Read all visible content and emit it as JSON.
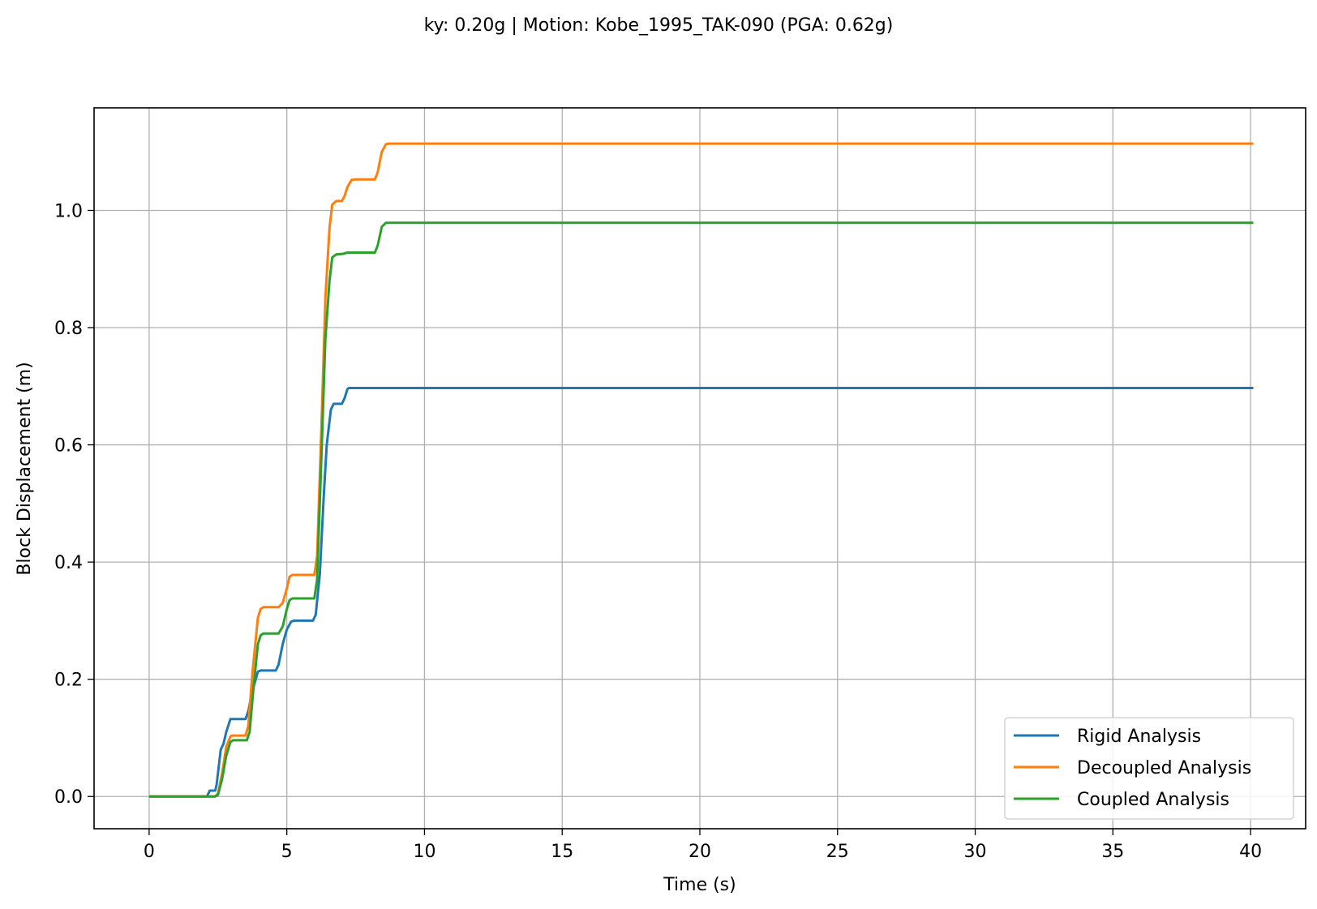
{
  "chart_data": {
    "type": "line",
    "title": "ky: 0.20g | Motion: Kobe_1995_TAK-090 (PGA: 0.62g)",
    "xlabel": "Time (s)",
    "ylabel": "Block Displacement (m)",
    "xlim": [
      -2.0,
      42.0
    ],
    "ylim": [
      -0.055,
      1.175
    ],
    "xticks": [
      0,
      5,
      10,
      15,
      20,
      25,
      30,
      35,
      40
    ],
    "xtick_labels": [
      "0",
      "5",
      "10",
      "15",
      "20",
      "25",
      "30",
      "35",
      "40"
    ],
    "yticks": [
      0.0,
      0.2,
      0.4,
      0.6,
      0.8,
      1.0
    ],
    "ytick_labels": [
      "0.0",
      "0.2",
      "0.4",
      "0.6",
      "0.8",
      "1.0"
    ],
    "grid": true,
    "legend_position": "lower-right",
    "series": [
      {
        "name": "Rigid Analysis",
        "color": "#1f77b4",
        "x": [
          0.0,
          2.1,
          2.2,
          2.3,
          2.4,
          2.45,
          2.6,
          2.7,
          2.8,
          2.95,
          3.5,
          3.6,
          3.75,
          3.95,
          4.05,
          4.15,
          4.6,
          4.7,
          4.85,
          5.0,
          5.15,
          5.25,
          5.95,
          6.05,
          6.2,
          6.35,
          6.45,
          6.6,
          6.7,
          7.0,
          7.1,
          7.2,
          7.25,
          40.1
        ],
        "y": [
          0.0,
          0.0,
          0.01,
          0.01,
          0.01,
          0.02,
          0.08,
          0.09,
          0.11,
          0.132,
          0.132,
          0.145,
          0.18,
          0.213,
          0.215,
          0.215,
          0.215,
          0.225,
          0.26,
          0.285,
          0.298,
          0.3,
          0.3,
          0.31,
          0.38,
          0.52,
          0.6,
          0.66,
          0.67,
          0.67,
          0.68,
          0.695,
          0.697,
          0.697
        ]
      },
      {
        "name": "Decoupled Analysis",
        "color": "#ff7f0e",
        "x": [
          0.0,
          2.4,
          2.5,
          2.65,
          2.8,
          2.95,
          3.0,
          3.5,
          3.6,
          3.75,
          3.95,
          4.05,
          4.15,
          4.7,
          4.85,
          5.0,
          5.1,
          5.2,
          6.0,
          6.1,
          6.25,
          6.4,
          6.55,
          6.65,
          6.8,
          7.0,
          7.1,
          7.2,
          7.35,
          7.5,
          8.2,
          8.3,
          8.45,
          8.6,
          8.7,
          40.1
        ],
        "y": [
          0.0,
          0.0,
          0.005,
          0.04,
          0.085,
          0.102,
          0.104,
          0.104,
          0.12,
          0.21,
          0.305,
          0.32,
          0.323,
          0.323,
          0.33,
          0.355,
          0.375,
          0.378,
          0.378,
          0.41,
          0.62,
          0.85,
          0.97,
          1.01,
          1.016,
          1.016,
          1.025,
          1.04,
          1.052,
          1.053,
          1.053,
          1.065,
          1.1,
          1.113,
          1.114,
          1.114
        ]
      },
      {
        "name": "Coupled Analysis",
        "color": "#2ca02c",
        "x": [
          0.0,
          2.4,
          2.5,
          2.65,
          2.8,
          2.95,
          3.05,
          3.55,
          3.65,
          3.8,
          3.95,
          4.05,
          4.15,
          4.7,
          4.85,
          5.0,
          5.1,
          5.2,
          6.0,
          6.1,
          6.25,
          6.4,
          6.55,
          6.65,
          6.8,
          7.05,
          7.2,
          8.2,
          8.3,
          8.45,
          8.6,
          8.7,
          40.1
        ],
        "y": [
          0.0,
          0.0,
          0.003,
          0.03,
          0.07,
          0.093,
          0.096,
          0.096,
          0.11,
          0.19,
          0.26,
          0.275,
          0.278,
          0.278,
          0.29,
          0.32,
          0.335,
          0.338,
          0.338,
          0.37,
          0.57,
          0.78,
          0.88,
          0.92,
          0.925,
          0.926,
          0.928,
          0.928,
          0.94,
          0.972,
          0.979,
          0.979,
          0.979
        ]
      }
    ]
  }
}
